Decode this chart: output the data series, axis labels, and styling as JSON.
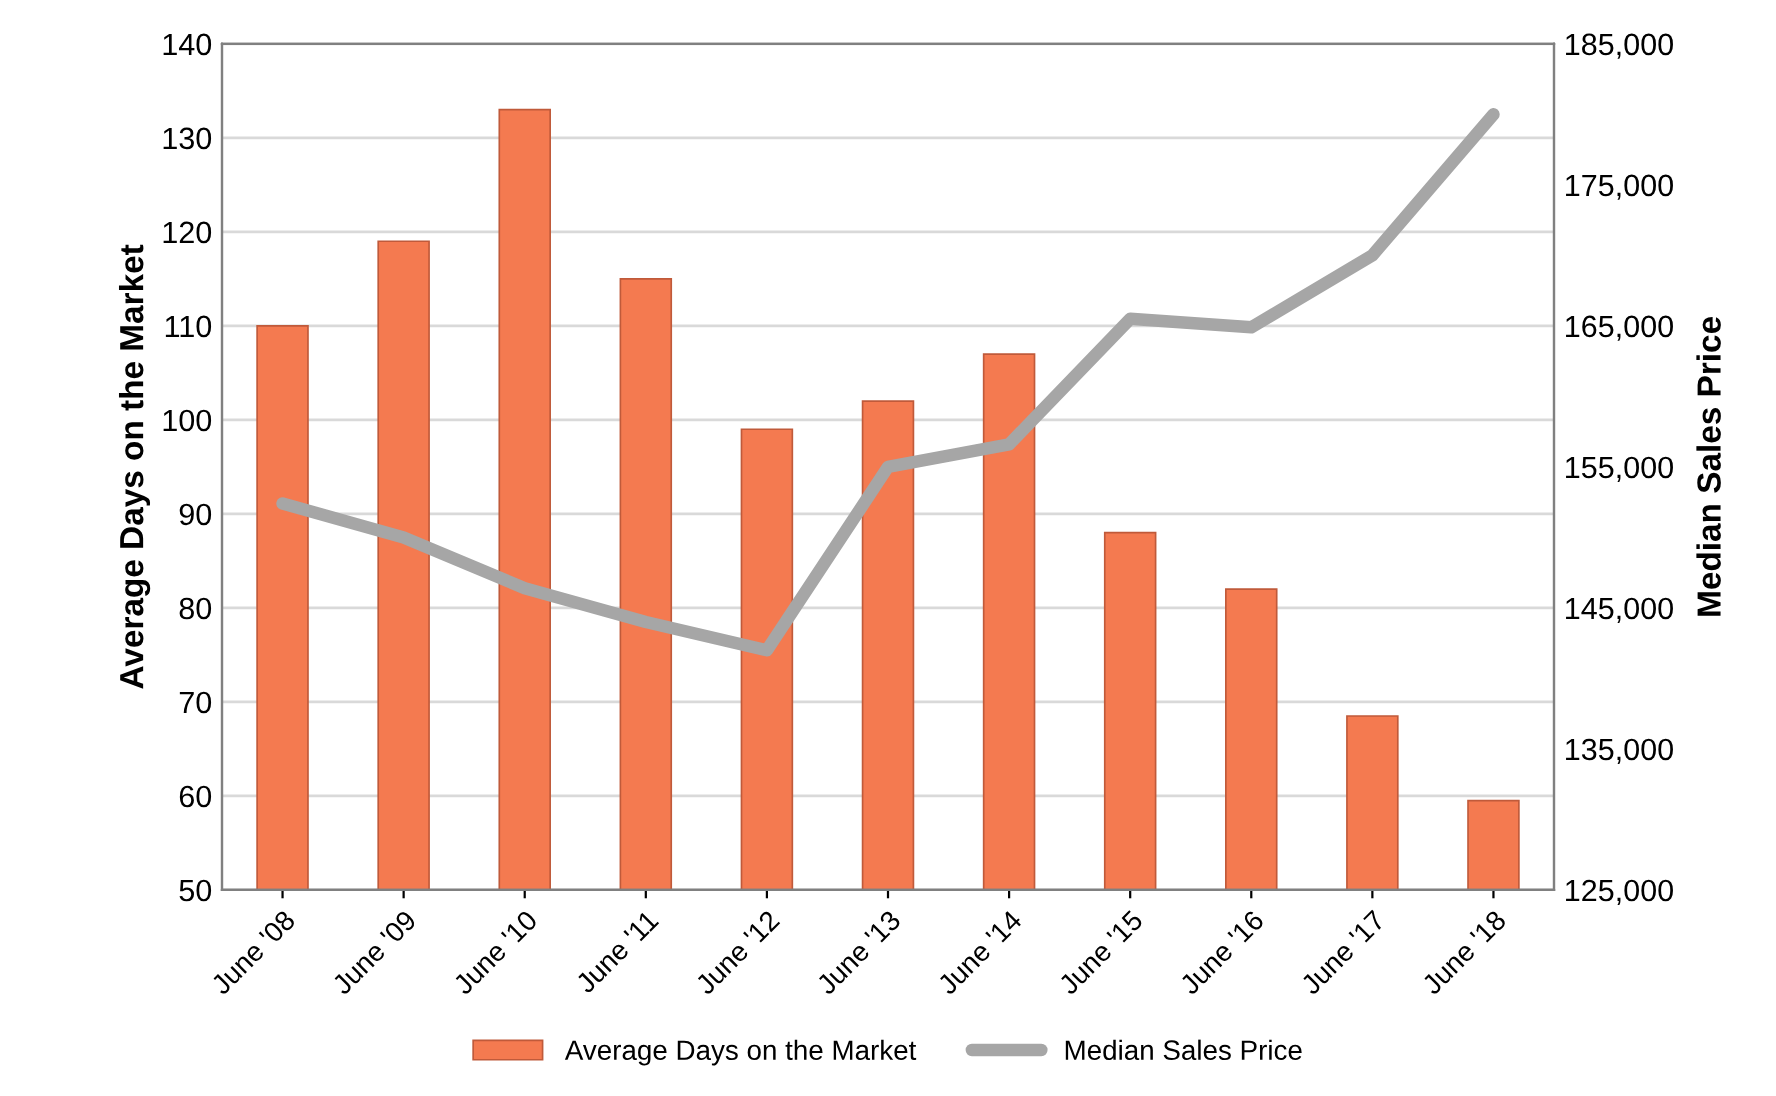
{
  "chart_data": {
    "type": "bar",
    "categories": [
      "June '08",
      "June '09",
      "June '10",
      "June '11",
      "June '12",
      "June '13",
      "June '14",
      "June '15",
      "June '16",
      "June '17",
      "June '18"
    ],
    "ylabel": "Average Days on the Market",
    "y2label": "Median Sales Price",
    "series": [
      {
        "name": "Average Days on the Market",
        "color": "#f47a50",
        "values": [
          110,
          119,
          133,
          115,
          99,
          102,
          107,
          88,
          82,
          68.5,
          59.5
        ]
      },
      {
        "name": "Median Sales Price",
        "type": "line",
        "axis": "y2",
        "color": "#a6a6a6",
        "values": [
          152400,
          150000,
          146400,
          144000,
          142000,
          155000,
          156600,
          165500,
          164900,
          170000,
          180000
        ]
      }
    ],
    "ylim": [
      50,
      140
    ],
    "yticks": [
      50,
      60,
      70,
      80,
      90,
      100,
      110,
      120,
      130,
      140
    ],
    "y2lim": [
      125000,
      185000
    ],
    "y2ticks": [
      {
        "value": 125000,
        "label": "125,000"
      },
      {
        "value": 135000,
        "label": "135,000"
      },
      {
        "value": 145000,
        "label": "145,000"
      },
      {
        "value": 155000,
        "label": "155,000"
      },
      {
        "value": 165000,
        "label": "165,000"
      },
      {
        "value": 175000,
        "label": "175,000"
      },
      {
        "value": 185000,
        "label": "185,000"
      }
    ],
    "grid": "y",
    "legend": "bottom"
  }
}
